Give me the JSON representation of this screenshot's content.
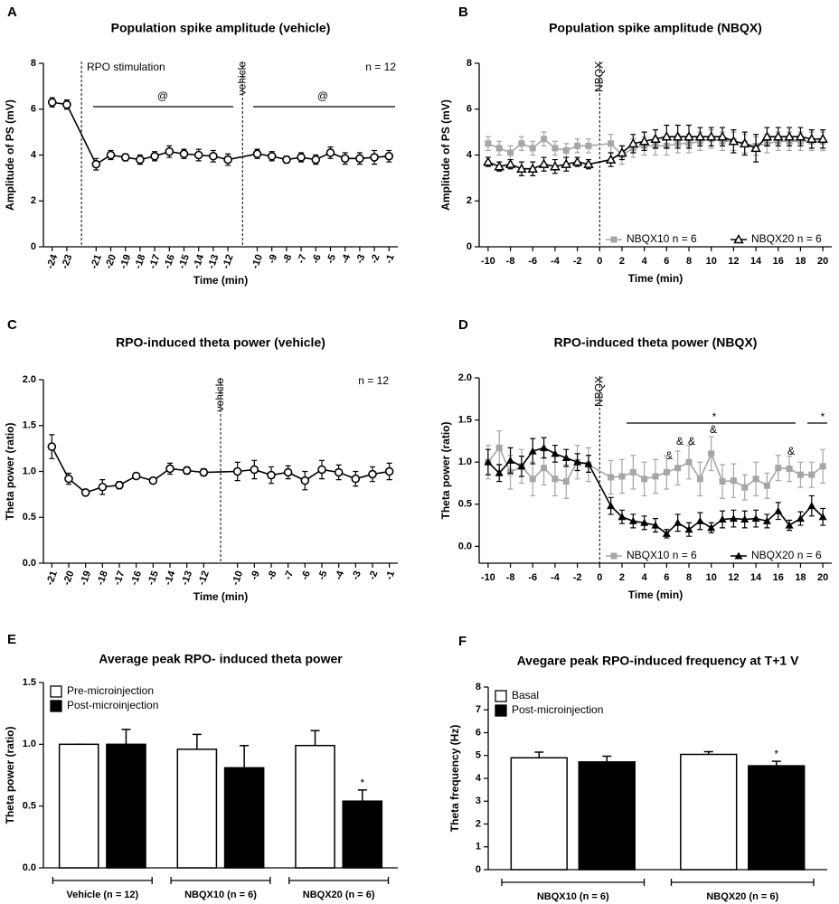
{
  "chart_data": [
    {
      "panel": "A",
      "type": "line",
      "title": "Population spike amplitude (vehicle)",
      "xlabel": "Time (min)",
      "ylabel": "Amplitude of PS (mV)",
      "x": [
        -24,
        -23,
        -21,
        -20,
        -19,
        -18,
        -17,
        -16,
        -15,
        -14,
        -13,
        -12,
        -10,
        -9,
        -8,
        -7,
        -6,
        -5,
        -4,
        -3,
        -2,
        -1
      ],
      "series": [
        {
          "color": "#000000",
          "marker": "circle-open",
          "values": [
            6.3,
            6.2,
            3.6,
            4.0,
            3.9,
            3.8,
            3.95,
            4.15,
            4.05,
            4.0,
            3.95,
            3.8,
            4.05,
            3.95,
            3.8,
            3.9,
            3.8,
            4.1,
            3.85,
            3.85,
            3.9,
            3.95
          ],
          "errors": [
            0.2,
            0.2,
            0.25,
            0.2,
            0.15,
            0.2,
            0.2,
            0.25,
            0.2,
            0.25,
            0.25,
            0.25,
            0.2,
            0.2,
            0.15,
            0.2,
            0.2,
            0.25,
            0.25,
            0.25,
            0.3,
            0.25
          ]
        }
      ],
      "xlim": [
        -24.6,
        -0.4
      ],
      "xticks": [
        -24,
        -23,
        -21,
        -20,
        -19,
        -18,
        -17,
        -16,
        -15,
        -14,
        -13,
        -12,
        -10,
        -9,
        -8,
        -7,
        -6,
        -5,
        -4,
        -3,
        -2,
        -1
      ],
      "xtick_labels_rotated": true,
      "ylim": [
        0,
        8
      ],
      "yticks": [
        0,
        2,
        4,
        6,
        8
      ],
      "vline_label": "vehicle",
      "annotations": [
        "RPO stimulation",
        "n = 12",
        "@",
        "@"
      ]
    },
    {
      "panel": "B",
      "type": "line",
      "title": "Population spike amplitude (NBQX)",
      "xlabel": "Time (min)",
      "ylabel": "Amplitude of PS (mV)",
      "x": [
        -10,
        -9,
        -8,
        -7,
        -6,
        -5,
        -4,
        -3,
        -2,
        -1,
        1,
        2,
        3,
        4,
        5,
        6,
        7,
        8,
        9,
        10,
        11,
        12,
        13,
        14,
        15,
        16,
        17,
        18,
        19,
        20
      ],
      "series": [
        {
          "name": "NBQX10 n = 6",
          "color": "#a6a6a6",
          "marker": "square",
          "values": [
            4.5,
            4.3,
            4.1,
            4.5,
            4.3,
            4.7,
            4.3,
            4.2,
            4.4,
            4.4,
            4.5,
            4.0,
            4.3,
            4.4,
            4.4,
            4.4,
            4.5,
            4.5,
            4.6,
            4.7,
            4.6,
            4.6,
            4.5,
            4.4,
            4.5,
            4.6,
            4.6,
            4.6,
            4.6,
            4.6
          ],
          "errors": [
            0.3,
            0.3,
            0.3,
            0.3,
            0.3,
            0.3,
            0.3,
            0.3,
            0.3,
            0.3,
            0.4,
            0.4,
            0.4,
            0.4,
            0.4,
            0.4,
            0.4,
            0.4,
            0.4,
            0.4,
            0.4,
            0.4,
            0.4,
            0.4,
            0.4,
            0.4,
            0.4,
            0.4,
            0.4,
            0.4
          ]
        },
        {
          "name": "NBQX20 n = 6",
          "color": "#000000",
          "marker": "triangle-open",
          "values": [
            3.7,
            3.5,
            3.6,
            3.4,
            3.4,
            3.6,
            3.5,
            3.6,
            3.7,
            3.6,
            3.8,
            4.1,
            4.5,
            4.6,
            4.7,
            4.8,
            4.8,
            4.8,
            4.8,
            4.8,
            4.8,
            4.6,
            4.5,
            4.3,
            4.8,
            4.8,
            4.8,
            4.8,
            4.7,
            4.7
          ],
          "errors": [
            0.2,
            0.2,
            0.2,
            0.3,
            0.3,
            0.3,
            0.3,
            0.3,
            0.2,
            0.2,
            0.3,
            0.3,
            0.4,
            0.4,
            0.4,
            0.5,
            0.5,
            0.5,
            0.4,
            0.4,
            0.4,
            0.5,
            0.5,
            0.6,
            0.4,
            0.4,
            0.4,
            0.4,
            0.4,
            0.4
          ]
        }
      ],
      "xlim": [
        -10.8,
        20.8
      ],
      "xticks": [
        -10,
        -8,
        -6,
        -4,
        -2,
        0,
        2,
        4,
        6,
        8,
        10,
        12,
        14,
        16,
        18,
        20
      ],
      "ylim": [
        0,
        8
      ],
      "yticks": [
        0,
        2,
        4,
        6,
        8
      ],
      "vline_label": "NBQX",
      "legend": "lower right"
    },
    {
      "panel": "C",
      "type": "line",
      "title": "RPO-induced theta power (vehicle)",
      "xlabel": "Time (min)",
      "ylabel": "Theta power (ratio)",
      "x": [
        -21,
        -20,
        -19,
        -18,
        -17,
        -16,
        -15,
        -14,
        -13,
        -12,
        -10,
        -9,
        -8,
        -7,
        -6,
        -5,
        -4,
        -3,
        -2,
        -1
      ],
      "series": [
        {
          "color": "#000000",
          "marker": "circle-open",
          "values": [
            1.27,
            0.92,
            0.77,
            0.83,
            0.85,
            0.95,
            0.9,
            1.03,
            1.01,
            0.99,
            1.0,
            1.02,
            0.96,
            0.99,
            0.9,
            1.02,
            0.99,
            0.92,
            0.97,
            1.0
          ],
          "errors": [
            0.13,
            0.06,
            0.03,
            0.08,
            0.04,
            0.03,
            0.03,
            0.06,
            0.04,
            0.04,
            0.1,
            0.1,
            0.09,
            0.07,
            0.1,
            0.1,
            0.08,
            0.08,
            0.08,
            0.09
          ]
        }
      ],
      "xlim": [
        -21.5,
        -0.5
      ],
      "xticks": [
        -21,
        -20,
        -19,
        -18,
        -17,
        -16,
        -15,
        -14,
        -13,
        -12,
        -10,
        -9,
        -8,
        -7,
        -6,
        -5,
        -4,
        -3,
        -2,
        -1
      ],
      "xtick_labels_rotated": true,
      "ylim": [
        0,
        2
      ],
      "yticks": [
        {
          "value": 0,
          "label": "0.0"
        },
        0.5,
        {
          "value": 1,
          "label": "1.0"
        },
        1.5,
        {
          "value": 2,
          "label": "2.0"
        }
      ],
      "vline_label": "vehicle",
      "annotations": [
        "n = 12"
      ]
    },
    {
      "panel": "D",
      "type": "line",
      "title": "RPO-induced theta power (NBQX)",
      "xlabel": "Time (min)",
      "ylabel": "Theta power (ratio)",
      "x": [
        -10,
        -9,
        -8,
        -7,
        -6,
        -5,
        -4,
        -3,
        -2,
        -1,
        1,
        2,
        3,
        4,
        5,
        6,
        7,
        8,
        9,
        10,
        11,
        12,
        13,
        14,
        15,
        16,
        17,
        18,
        19,
        20
      ],
      "series": [
        {
          "name": "NBQX10 n = 6",
          "color": "#a6a6a6",
          "marker": "square",
          "values": [
            1.0,
            1.17,
            0.88,
            0.95,
            0.8,
            0.93,
            0.8,
            0.77,
            1.0,
            0.97,
            0.82,
            0.83,
            0.88,
            0.8,
            0.83,
            0.88,
            0.93,
            1.0,
            0.8,
            1.1,
            0.77,
            0.78,
            0.7,
            0.8,
            0.72,
            0.93,
            0.92,
            0.85,
            0.85,
            0.95
          ],
          "errors": [
            0.2,
            0.2,
            0.2,
            0.2,
            0.2,
            0.2,
            0.2,
            0.2,
            0.2,
            0.2,
            0.2,
            0.2,
            0.2,
            0.2,
            0.2,
            0.2,
            0.2,
            0.2,
            0.2,
            0.2,
            0.2,
            0.2,
            0.15,
            0.2,
            0.15,
            0.15,
            0.15,
            0.15,
            0.15,
            0.2
          ]
        },
        {
          "name": "NBQX20 n = 6",
          "color": "#000000",
          "marker": "triangle",
          "values": [
            1.0,
            0.87,
            1.02,
            0.95,
            1.13,
            1.17,
            1.1,
            1.05,
            1.0,
            0.98,
            0.48,
            0.35,
            0.3,
            0.28,
            0.25,
            0.15,
            0.28,
            0.2,
            0.3,
            0.22,
            0.32,
            0.33,
            0.32,
            0.33,
            0.3,
            0.42,
            0.25,
            0.33,
            0.48,
            0.35
          ],
          "errors": [
            0.15,
            0.1,
            0.15,
            0.12,
            0.15,
            0.12,
            0.1,
            0.1,
            0.1,
            0.1,
            0.1,
            0.08,
            0.08,
            0.08,
            0.08,
            0.05,
            0.1,
            0.08,
            0.1,
            0.06,
            0.1,
            0.1,
            0.1,
            0.1,
            0.08,
            0.1,
            0.06,
            0.08,
            0.12,
            0.1
          ]
        }
      ],
      "xlim": [
        -10.8,
        20.8
      ],
      "xticks": [
        -10,
        -8,
        -6,
        -4,
        -2,
        0,
        2,
        4,
        6,
        8,
        10,
        12,
        14,
        16,
        18,
        20
      ],
      "ylim": [
        -0.2,
        2
      ],
      "yticks": [
        {
          "value": 0,
          "label": "0.0"
        },
        0.5,
        {
          "value": 1,
          "label": "1.0"
        },
        1.5,
        {
          "value": 2,
          "label": "2.0"
        }
      ],
      "vline_label": "NBQX",
      "legend": "lower right",
      "annotations": [
        "*",
        "*",
        "&",
        "&",
        "&",
        "&",
        "&"
      ]
    },
    {
      "panel": "E",
      "type": "bar",
      "title": "Average peak RPO- induced theta power",
      "ylabel": "Theta power (ratio)",
      "categories": [
        "Vehicle (n = 12)",
        "NBQX10 (n = 6)",
        "NBQX20 (n = 6)"
      ],
      "series": [
        {
          "name": "Pre-microinjection",
          "color": "#ffffff",
          "values": [
            1.0,
            0.96,
            0.99
          ],
          "errors": [
            0,
            0.12,
            0.12
          ]
        },
        {
          "name": "Post-microinjection",
          "color": "#000000",
          "values": [
            1.0,
            0.81,
            0.54
          ],
          "errors": [
            0.12,
            0.18,
            0.09
          ]
        }
      ],
      "ylim": [
        0,
        1.5
      ],
      "yticks": [
        {
          "value": 0,
          "label": "0.0"
        },
        0.5,
        {
          "value": 1,
          "label": "1.0"
        },
        1.5
      ],
      "legend": "upper left",
      "annotations": [
        "*"
      ]
    },
    {
      "panel": "F",
      "type": "bar",
      "title": "Avegare peak RPO-induced frequency at T+1 V",
      "ylabel": "Theta frequency (Hz)",
      "categories": [
        "NBQX10 (n = 6)",
        "NBQX20 (n = 6)"
      ],
      "series": [
        {
          "name": "Basal",
          "color": "#ffffff",
          "values": [
            4.9,
            5.05
          ],
          "errors": [
            0.25,
            0.12
          ]
        },
        {
          "name": "Post-microinjection",
          "color": "#000000",
          "values": [
            4.72,
            4.55
          ],
          "errors": [
            0.25,
            0.2
          ]
        }
      ],
      "ylim": [
        0,
        8
      ],
      "yticks": [
        0,
        1,
        2,
        3,
        4,
        5,
        6,
        7,
        8
      ],
      "legend": "upper left",
      "annotations": [
        "*"
      ]
    }
  ]
}
